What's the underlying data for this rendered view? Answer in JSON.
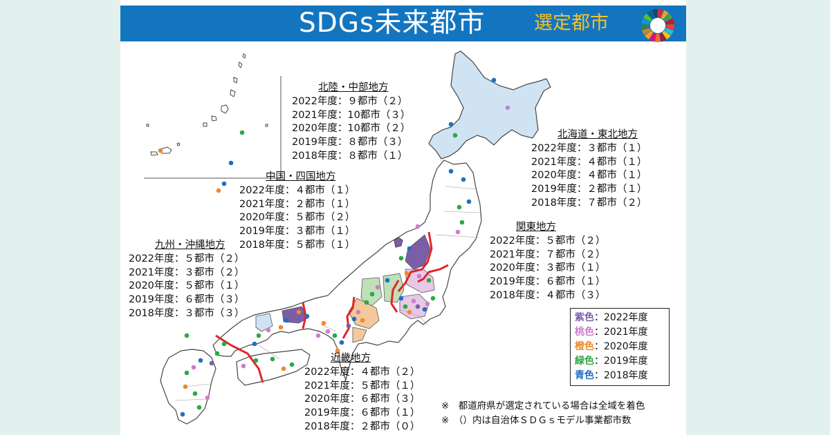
{
  "header": {
    "title": "SDGs未来都市",
    "subtitle": "選定都市",
    "banner_color": "#1375bf",
    "subtitle_color": "#f2c22e"
  },
  "regions": {
    "hokuriku_chubu": {
      "name": "北陸・中部地方",
      "rows": [
        "2022年度：９都市（２）",
        "2021年度：10都市（３）",
        "2020年度：10都市（２）",
        "2019年度：８都市（３）",
        "2018年度：８都市（１）"
      ]
    },
    "chugoku_shikoku": {
      "name": "中国・四国地方",
      "rows": [
        "2022年度：４都市（１）",
        "2021年度：２都市（１）",
        "2020年度：５都市（２）",
        "2019年度：３都市（１）",
        "2018年度：５都市（１）"
      ]
    },
    "kyushu_okinawa": {
      "name": "九州・沖縄地方",
      "rows": [
        "2022年度：５都市（２）",
        "2021年度：３都市（２）",
        "2020年度：５都市（１）",
        "2019年度：６都市（３）",
        "2018年度：３都市（３）"
      ]
    },
    "hokkaido_tohoku": {
      "name": "北海道・東北地方",
      "rows": [
        "2022年度：３都市（１）",
        "2021年度：４都市（１）",
        "2020年度：４都市（１）",
        "2019年度：２都市（１）",
        "2018年度：７都市（２）"
      ]
    },
    "kanto": {
      "name": "関東地方",
      "rows": [
        "2022年度：５都市（２）",
        "2021年度：７都市（２）",
        "2020年度：３都市（１）",
        "2019年度：６都市（１）",
        "2018年度：４都市（３）"
      ]
    },
    "kinki": {
      "name": "近畿地方",
      "rows": [
        "2022年度：４都市（２）",
        "2021年度：５都市（１）",
        "2020年度：６都市（３）",
        "2019年度：６都市（１）",
        "2018年度：２都市（０）"
      ]
    }
  },
  "legend": [
    {
      "label": "紫色",
      "desc": "：2022年度",
      "color": "#7b5ea8"
    },
    {
      "label": "桃色",
      "desc": "：2021年度",
      "color": "#cc7fcc"
    },
    {
      "label": "橙色",
      "desc": "：2020年度",
      "color": "#ee8a2a"
    },
    {
      "label": "緑色",
      "desc": "：2019年度",
      "color": "#2da845"
    },
    {
      "label": "青色",
      "desc": "：2018年度",
      "color": "#1e6fc4"
    }
  ],
  "notes": [
    "※　都道府県が選定されている場合は全域を着色",
    "※　（）内は自治体ＳＤＧｓモデル事業都市数"
  ],
  "colors": {
    "page_background": "#e3f1ee",
    "region_border": "#e0252a",
    "hokkaido_fill": "#cfe3f3",
    "land_fill": "#ffffff",
    "land_stroke": "#444444"
  }
}
